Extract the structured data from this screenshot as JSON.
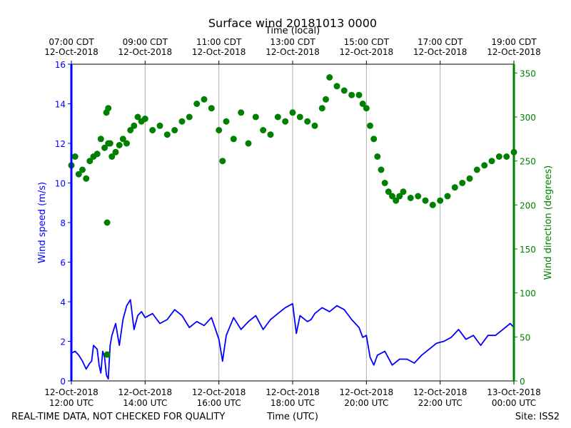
{
  "chart_data": {
    "type": "line",
    "title": "Surface wind 20181013 0000",
    "top_axis_label": "Time (local)",
    "xlabel": "Time (UTC)",
    "ylabel_left": "Wind speed (m/s)",
    "ylabel_right": "Wind direction (degrees)",
    "footer_left": "REAL-TIME DATA, NOT CHECKED FOR QUALITY",
    "footer_right": "Site: ISS2",
    "x_range_hours": [
      12,
      24
    ],
    "ylim_left": [
      0,
      16
    ],
    "ylim_right": [
      0,
      360
    ],
    "colors": {
      "speed": "#0000ff",
      "direction": "#008000",
      "grid": "#b0b0b0",
      "axis": "#000000"
    },
    "bottom_ticks": [
      {
        "hour": 12,
        "line1": "12-Oct-2018",
        "line2": "12:00 UTC"
      },
      {
        "hour": 14,
        "line1": "12-Oct-2018",
        "line2": "14:00 UTC"
      },
      {
        "hour": 16,
        "line1": "12-Oct-2018",
        "line2": "16:00 UTC"
      },
      {
        "hour": 18,
        "line1": "12-Oct-2018",
        "line2": "18:00 UTC"
      },
      {
        "hour": 20,
        "line1": "12-Oct-2018",
        "line2": "20:00 UTC"
      },
      {
        "hour": 22,
        "line1": "12-Oct-2018",
        "line2": "22:00 UTC"
      },
      {
        "hour": 24,
        "line1": "13-Oct-2018",
        "line2": "00:00 UTC"
      }
    ],
    "top_ticks": [
      {
        "hour": 12,
        "line1": "07:00 CDT",
        "line2": "12-Oct-2018"
      },
      {
        "hour": 14,
        "line1": "09:00 CDT",
        "line2": "12-Oct-2018"
      },
      {
        "hour": 16,
        "line1": "11:00 CDT",
        "line2": "12-Oct-2018"
      },
      {
        "hour": 18,
        "line1": "13:00 CDT",
        "line2": "12-Oct-2018"
      },
      {
        "hour": 20,
        "line1": "15:00 CDT",
        "line2": "12-Oct-2018"
      },
      {
        "hour": 22,
        "line1": "17:00 CDT",
        "line2": "12-Oct-2018"
      },
      {
        "hour": 24,
        "line1": "19:00 CDT",
        "line2": "12-Oct-2018"
      }
    ],
    "left_ticks": [
      "0",
      "2",
      "4",
      "6",
      "8",
      "10",
      "12",
      "14",
      "16"
    ],
    "left_tick_values": [
      0,
      2,
      4,
      6,
      8,
      10,
      12,
      14,
      16
    ],
    "right_ticks": [
      "0",
      "50",
      "100",
      "150",
      "200",
      "250",
      "300",
      "350"
    ],
    "right_tick_values": [
      0,
      50,
      100,
      150,
      200,
      250,
      300,
      350
    ],
    "series": [
      {
        "name": "Wind speed (m/s)",
        "axis": "left",
        "style": "line",
        "hours": [
          12.0,
          12.1,
          12.2,
          12.3,
          12.4,
          12.5,
          12.55,
          12.6,
          12.7,
          12.75,
          12.8,
          12.85,
          12.9,
          12.95,
          13.0,
          13.05,
          13.1,
          13.15,
          13.2,
          13.3,
          13.4,
          13.5,
          13.6,
          13.7,
          13.8,
          13.9,
          14.0,
          14.2,
          14.4,
          14.6,
          14.8,
          15.0,
          15.2,
          15.4,
          15.6,
          15.8,
          16.0,
          16.1,
          16.2,
          16.4,
          16.6,
          16.8,
          17.0,
          17.2,
          17.4,
          17.6,
          17.8,
          18.0,
          18.1,
          18.2,
          18.4,
          18.5,
          18.6,
          18.8,
          19.0,
          19.2,
          19.4,
          19.6,
          19.8,
          19.9,
          20.0,
          20.1,
          20.2,
          20.3,
          20.5,
          20.7,
          20.9,
          21.1,
          21.3,
          21.5,
          21.7,
          21.9,
          22.1,
          22.3,
          22.5,
          22.7,
          22.9,
          23.1,
          23.3,
          23.5,
          23.7,
          23.9,
          24.0
        ],
        "values": [
          1.4,
          1.5,
          1.3,
          1.0,
          0.6,
          0.9,
          1.0,
          1.8,
          1.6,
          0.8,
          0.4,
          1.5,
          1.2,
          0.3,
          0.1,
          1.8,
          2.3,
          2.6,
          2.9,
          1.8,
          3.1,
          3.8,
          4.1,
          2.6,
          3.3,
          3.5,
          3.2,
          3.4,
          2.9,
          3.1,
          3.6,
          3.3,
          2.7,
          3.0,
          2.8,
          3.2,
          2.1,
          1.0,
          2.3,
          3.2,
          2.6,
          3.0,
          3.3,
          2.6,
          3.1,
          3.4,
          3.7,
          3.9,
          2.4,
          3.3,
          3.0,
          3.1,
          3.4,
          3.7,
          3.5,
          3.8,
          3.6,
          3.1,
          2.7,
          2.2,
          2.3,
          1.2,
          0.8,
          1.3,
          1.5,
          0.8,
          1.1,
          1.1,
          0.9,
          1.3,
          1.6,
          1.9,
          2.0,
          2.2,
          2.6,
          2.1,
          2.3,
          1.8,
          2.3,
          2.3,
          2.6,
          2.9,
          2.7
        ]
      },
      {
        "name": "Wind direction (degrees)",
        "axis": "right",
        "style": "scatter",
        "hours": [
          12.0,
          12.1,
          12.2,
          12.3,
          12.4,
          12.5,
          12.6,
          12.7,
          12.8,
          12.9,
          13.0,
          13.1,
          13.2,
          13.3,
          13.4,
          13.5,
          13.6,
          13.7,
          13.8,
          13.9,
          14.0,
          14.2,
          14.4,
          14.6,
          14.8,
          15.0,
          15.2,
          15.4,
          15.6,
          15.8,
          16.0,
          16.1,
          16.2,
          16.4,
          16.6,
          16.8,
          17.0,
          17.2,
          17.4,
          17.6,
          17.8,
          18.0,
          18.2,
          18.4,
          18.6,
          18.8,
          18.9,
          19.0,
          19.2,
          19.4,
          19.6,
          19.8,
          19.9,
          20.0,
          20.1,
          20.2,
          20.3,
          20.4,
          20.5,
          20.6,
          20.7,
          20.8,
          20.9,
          21.0,
          21.2,
          21.4,
          21.6,
          21.8,
          22.0,
          22.2,
          22.4,
          22.6,
          22.8,
          23.0,
          23.2,
          23.4,
          23.6,
          23.8,
          24.0,
          12.95,
          13.0,
          12.97,
          13.05,
          12.97
        ],
        "values": [
          245,
          255,
          235,
          240,
          230,
          250,
          255,
          258,
          275,
          265,
          270,
          255,
          260,
          268,
          275,
          270,
          285,
          290,
          300,
          295,
          298,
          285,
          290,
          280,
          285,
          295,
          300,
          315,
          320,
          310,
          285,
          250,
          295,
          275,
          305,
          270,
          300,
          285,
          280,
          300,
          295,
          305,
          300,
          295,
          290,
          310,
          320,
          345,
          335,
          330,
          325,
          325,
          315,
          310,
          290,
          275,
          255,
          240,
          225,
          215,
          210,
          205,
          210,
          215,
          208,
          210,
          205,
          200,
          205,
          210,
          220,
          225,
          230,
          240,
          245,
          250,
          255,
          255,
          260,
          305,
          310,
          180,
          270,
          30
        ]
      }
    ]
  }
}
